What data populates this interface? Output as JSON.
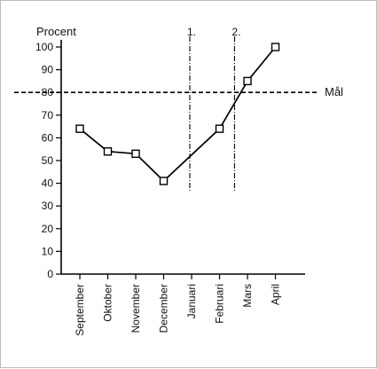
{
  "chart_data": {
    "type": "line",
    "ylabel": "Procent",
    "categories": [
      "September",
      "Oktober",
      "November",
      "December",
      "Januari",
      "Februari",
      "Mars",
      "April"
    ],
    "series": [
      {
        "values": [
          64,
          54,
          53,
          41,
          null,
          64,
          85,
          100
        ]
      }
    ],
    "ylim": [
      0,
      100
    ],
    "yticks": [
      0,
      10,
      20,
      30,
      40,
      50,
      60,
      70,
      80,
      90,
      100
    ],
    "target": {
      "label": "Mål",
      "value": 80
    },
    "markers": [
      {
        "label": "1.",
        "position": 4
      },
      {
        "label": "2.",
        "position": 5.6
      }
    ],
    "grid": false,
    "colors": {
      "line": "#000000",
      "marker_fill": "#ffffff"
    }
  }
}
